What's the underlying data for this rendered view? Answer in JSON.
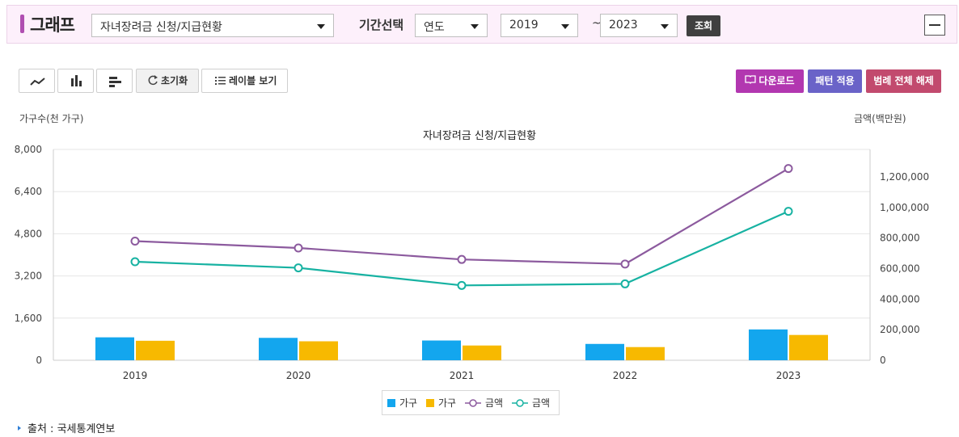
{
  "header": {
    "title": "그래프",
    "stat_select": "자녀장려금 신청/지급현황",
    "period_label": "기간선택",
    "period_unit": "연도",
    "start_year": "2019",
    "range_sep": "~",
    "end_year": "2023",
    "search_label": "조회"
  },
  "toolbar": {
    "reset_label": "초기화",
    "label_view_label": "레이블 보기",
    "download_label": "다운로드",
    "pattern_label": "패턴 적용",
    "legend_clear_label": "범례 전체 해제"
  },
  "colors": {
    "download": "#b237b0",
    "pattern": "#6a63c8",
    "legend_clear": "#c24a6e",
    "series_households_1": "#13a6ee",
    "series_households_2": "#f7b900",
    "series_amount_1": "#8c5a9e",
    "series_amount_2": "#17b2a2"
  },
  "source": {
    "text": "출처 : 국세통계연보"
  },
  "chart_data": {
    "type": "bar+line",
    "title": "자녀장려금 신청/지급현황",
    "ylabel_left": "가구수(천 가구)",
    "ylabel_right": "금액(백만원)",
    "categories": [
      "2019",
      "2020",
      "2021",
      "2022",
      "2023"
    ],
    "y_left_ticks": [
      "8,000",
      "6,400",
      "4,800",
      "3,200",
      "1,600",
      "0"
    ],
    "y_right_ticks": [
      "1,200,000",
      "1,000,000",
      "800,000",
      "600,000",
      "400,000",
      "200,000",
      "0"
    ],
    "ylim_left": [
      0,
      8000
    ],
    "ylim_right": [
      0,
      1380000
    ],
    "grid": true,
    "legend_position": "bottom",
    "series": [
      {
        "name": "가구",
        "type": "bar",
        "axis": "left",
        "values": [
          870,
          850,
          750,
          620,
          1170
        ]
      },
      {
        "name": "가구",
        "type": "bar",
        "axis": "left",
        "values": [
          740,
          720,
          560,
          500,
          960
        ]
      },
      {
        "name": "금액",
        "type": "line",
        "axis": "right",
        "values": [
          780000,
          735000,
          660000,
          630000,
          1255000
        ]
      },
      {
        "name": "금액",
        "type": "line",
        "axis": "right",
        "values": [
          645000,
          605000,
          490000,
          500000,
          975000
        ]
      }
    ]
  }
}
